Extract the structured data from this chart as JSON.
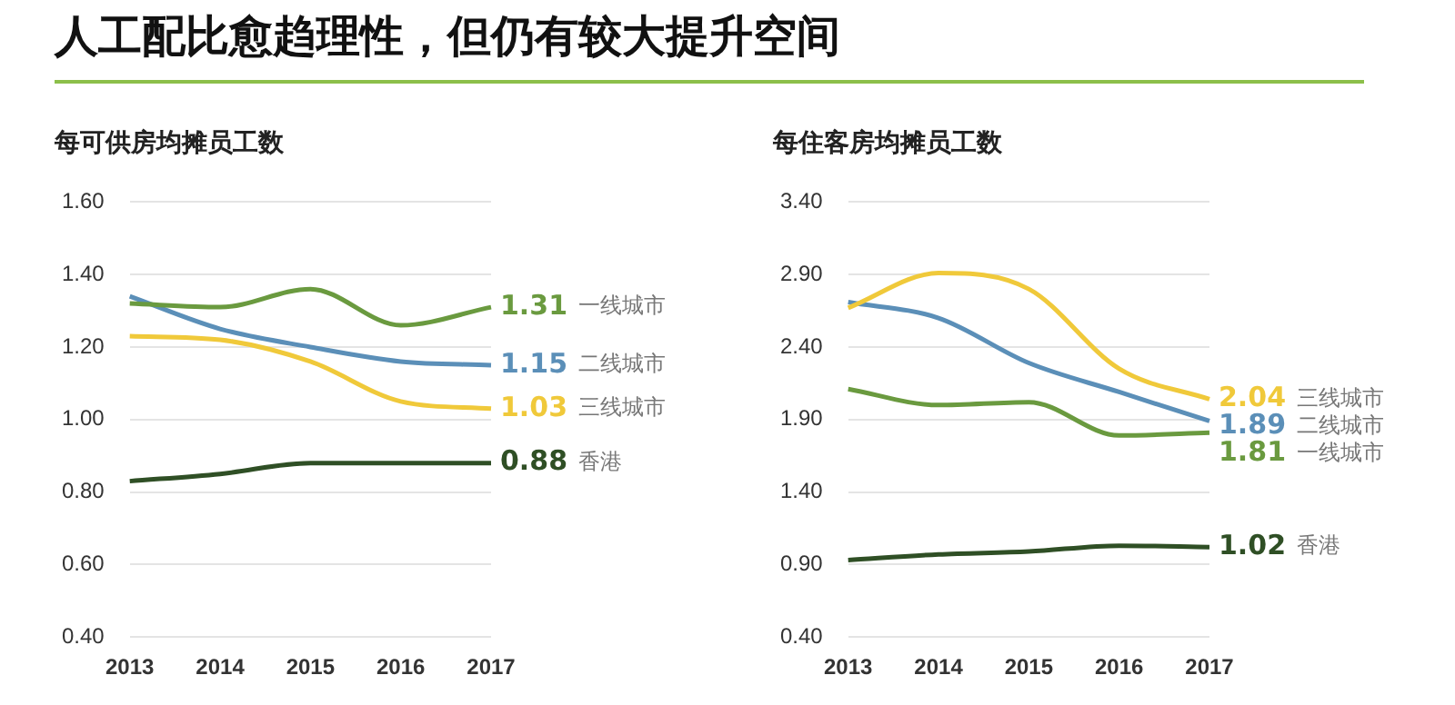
{
  "chart_data": [
    {
      "type": "line",
      "title": "每可供房均摊员工数",
      "annotations": [
        "人工配比愈趋理性，但仍有较大提升空间"
      ],
      "categories": [
        "2013",
        "2014",
        "2015",
        "2016",
        "2017"
      ],
      "ylim": [
        0.4,
        1.6
      ],
      "yticks": [
        {
          "value": 0.4,
          "label": "0.40"
        },
        {
          "value": 0.6,
          "label": "0.60"
        },
        {
          "value": 0.8,
          "label": "0.80"
        },
        {
          "value": 1.0,
          "label": "1.00"
        },
        {
          "value": 1.2,
          "label": "1.20"
        },
        {
          "value": 1.4,
          "label": "1.40"
        },
        {
          "value": 1.6,
          "label": "1.60"
        }
      ],
      "grid": "y",
      "series": [
        {
          "name": "一线城市",
          "color": "#6a9a3f",
          "values": [
            1.32,
            1.31,
            1.36,
            1.26,
            1.31
          ],
          "value_labels": [
            null,
            null,
            null,
            null,
            "1.31"
          ]
        },
        {
          "name": "二线城市",
          "color": "#5b8fb8",
          "values": [
            1.34,
            1.25,
            1.2,
            1.16,
            1.15
          ],
          "value_labels": [
            null,
            null,
            null,
            null,
            "1.15"
          ]
        },
        {
          "name": "三线城市",
          "color": "#f0c93a",
          "values": [
            1.23,
            1.22,
            1.16,
            1.05,
            1.03
          ],
          "value_labels": [
            null,
            null,
            null,
            null,
            "1.03"
          ]
        },
        {
          "name": "香港",
          "color": "#2f4f25",
          "values": [
            0.83,
            0.85,
            0.88,
            0.88,
            0.88
          ],
          "value_labels": [
            null,
            null,
            null,
            null,
            "0.88"
          ]
        }
      ]
    },
    {
      "type": "line",
      "title": "每住客房均摊员工数",
      "categories": [
        "2013",
        "2014",
        "2015",
        "2016",
        "2017"
      ],
      "ylim": [
        0.4,
        3.4
      ],
      "yticks": [
        {
          "value": 0.4,
          "label": "0.40"
        },
        {
          "value": 0.9,
          "label": "0.90"
        },
        {
          "value": 1.4,
          "label": "1.40"
        },
        {
          "value": 1.9,
          "label": "1.90"
        },
        {
          "value": 2.4,
          "label": "2.40"
        },
        {
          "value": 2.9,
          "label": "2.90"
        },
        {
          "value": 3.4,
          "label": "3.40"
        }
      ],
      "grid": "y",
      "series": [
        {
          "name": "三线城市",
          "color": "#f0c93a",
          "values": [
            2.67,
            2.91,
            2.8,
            2.25,
            2.04
          ],
          "value_labels": [
            null,
            null,
            null,
            null,
            "2.04"
          ]
        },
        {
          "name": "二线城市",
          "color": "#5b8fb8",
          "values": [
            2.71,
            2.6,
            2.29,
            2.09,
            1.89
          ],
          "value_labels": [
            null,
            null,
            null,
            null,
            "1.89"
          ]
        },
        {
          "name": "一线城市",
          "color": "#6a9a3f",
          "values": [
            2.11,
            2.0,
            2.02,
            1.79,
            1.81
          ],
          "value_labels": [
            null,
            null,
            null,
            null,
            "1.81"
          ]
        },
        {
          "name": "香港",
          "color": "#2f4f25",
          "values": [
            0.93,
            0.97,
            0.99,
            1.03,
            1.02
          ],
          "value_labels": [
            null,
            null,
            null,
            null,
            "1.02"
          ]
        }
      ]
    }
  ]
}
